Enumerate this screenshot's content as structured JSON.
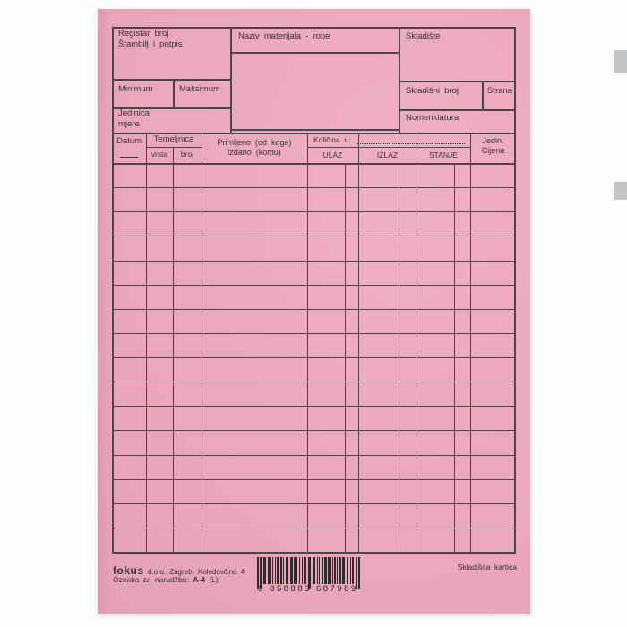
{
  "colors": {
    "paper": "#eda7b8",
    "line": "#4e454b",
    "text": "#39333a",
    "barcode": "#2e2a2e"
  },
  "header": {
    "registar_broj": "Registar broj",
    "stambilj": "Štambilj i potpis",
    "naziv": "Naziv materijala - robe",
    "skladiste": "Skladište",
    "minimum": "Minimum",
    "maksimum": "Maksimum",
    "skladisni_broj": "Skladišni broj",
    "strana": "Strana",
    "jedinica": "Jedinica",
    "mjere": "mjere",
    "nomenklatura": "Nomenklatura"
  },
  "table": {
    "datum": "Datum",
    "temeljnica": "Temeljnica",
    "vrsta": "vrsta",
    "broj": "broj",
    "primljeno_line1": "Primljeno (od koga)",
    "primljeno_line2": "izdano (komu)",
    "kolicina": "Količina u:",
    "ulaz": "ULAZ",
    "izlaz": "IZLAZ",
    "stanje": "STANJE",
    "jedin": "Jedin.",
    "cijena": "Cijena",
    "row_count": 16
  },
  "footer": {
    "brand": "fokus",
    "brand_suffix": "d.o.o.  Zagreb, Koledovčina 4",
    "order_prefix": "Oznaka za narudžbu:",
    "order_code": "A-4",
    "order_note": "(L)",
    "barcode_text": "3 858883 687989",
    "doc_name": "Skladišna kartica"
  }
}
